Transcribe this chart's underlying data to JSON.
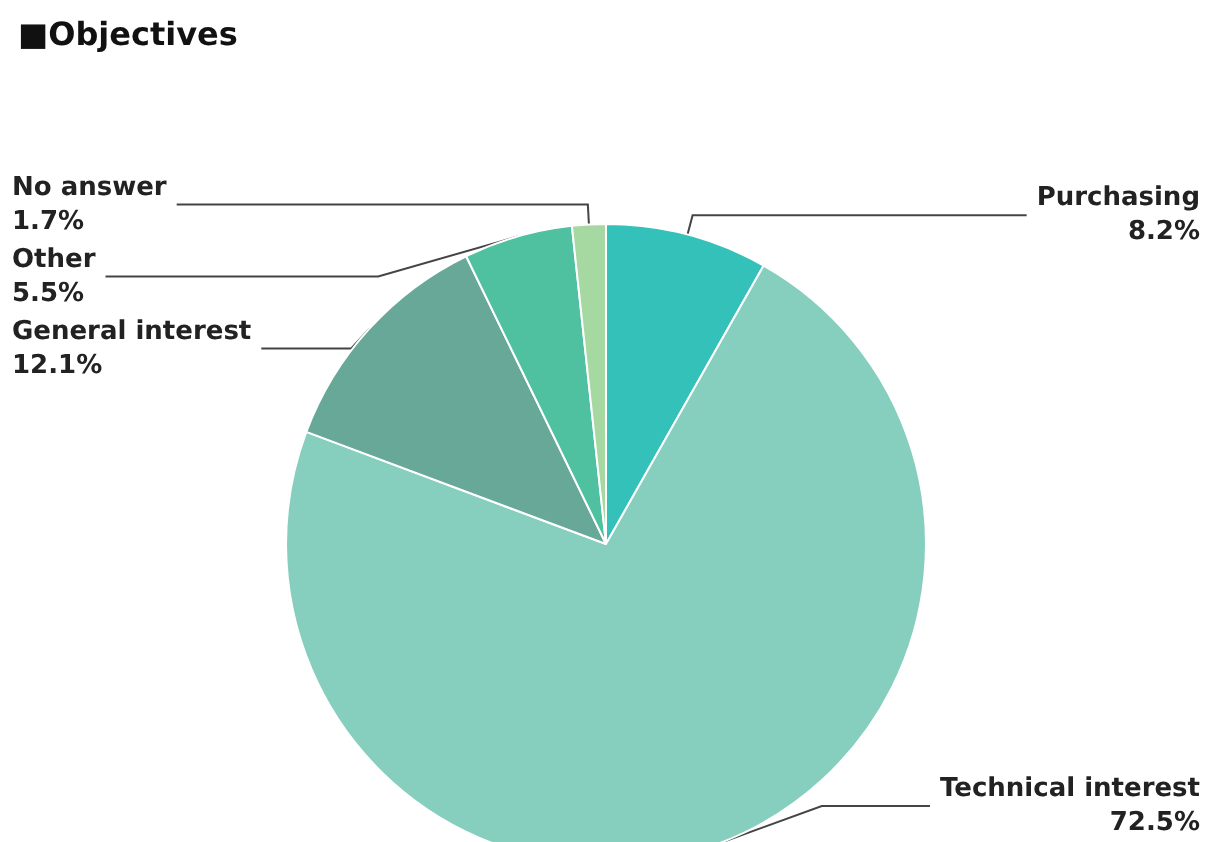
{
  "chart_data": {
    "type": "pie",
    "title": "■Objectives",
    "categories": [
      "Purchasing",
      "Technical interest",
      "General interest",
      "Other",
      "No answer"
    ],
    "values": [
      8.2,
      72.5,
      12.1,
      5.5,
      1.7
    ],
    "value_labels": [
      "8.2%",
      "72.5%",
      "12.1%",
      "5.5%",
      "1.7%"
    ],
    "colors": [
      "#33c1b9",
      "#86cebe",
      "#68a898",
      "#4fc0a0",
      "#a6d8a2"
    ],
    "legend": false
  }
}
